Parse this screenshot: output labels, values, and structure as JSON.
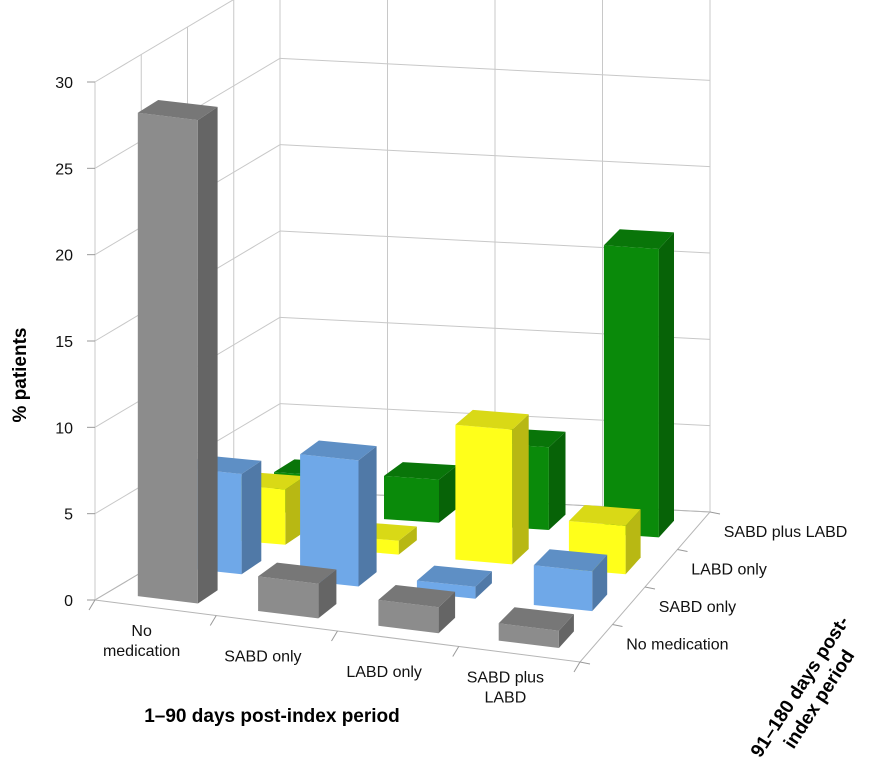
{
  "chart_data": {
    "type": "bar",
    "subtype": "3d-column",
    "ylabel": "% patients",
    "xlabel": "1–90 days post-index period",
    "zlabel": "91–180 days post-\nindex period",
    "ylim": [
      0,
      30
    ],
    "yticks": [
      0,
      5,
      10,
      15,
      20,
      25,
      30
    ],
    "grid": true,
    "categories": [
      "No\nmedication",
      "SABD only",
      "LABD only",
      "SABD plus\nLABD"
    ],
    "series": [
      {
        "name": "No medication",
        "color": "#8c8c8c",
        "values": [
          28,
          2.0,
          1.5,
          1.0
        ]
      },
      {
        "name": "SABD only",
        "color": "#6fa8e8",
        "values": [
          5.8,
          7.3,
          0.7,
          2.3
        ]
      },
      {
        "name": "LABD only",
        "color": "#ffff1a",
        "values": [
          3.2,
          0.8,
          7.8,
          2.8
        ]
      },
      {
        "name": "SABD plus LABD",
        "color": "#0a8a0a",
        "values": [
          2.3,
          2.5,
          4.8,
          16.7
        ]
      }
    ]
  }
}
